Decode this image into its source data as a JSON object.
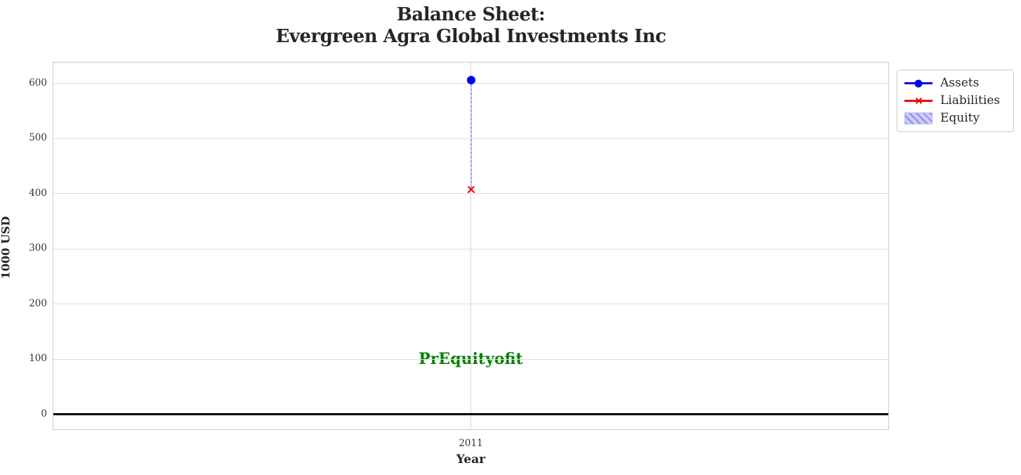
{
  "title_lines": [
    "Balance Sheet:",
    "Evergreen Agra Global Investments Inc"
  ],
  "chart_data": {
    "type": "line",
    "x": [
      2011
    ],
    "xticklabels": [
      "2011"
    ],
    "series": [
      {
        "name": "Assets",
        "plot_type": "line",
        "marker": "circle",
        "color": "#0000ee",
        "values": [
          606
        ]
      },
      {
        "name": "Liabilities",
        "plot_type": "line",
        "marker": "x",
        "color": "#ee0000",
        "values": [
          408
        ]
      },
      {
        "name": "Equity",
        "plot_type": "bar",
        "hatch": "//",
        "face_color": "#ccccff",
        "hatch_color": "#8c8cdb",
        "bottom": "Liabilities",
        "values": [
          198
        ]
      }
    ],
    "title": "Balance Sheet:\nEvergreen Agra Global Investments Inc",
    "xlabel": "Year",
    "ylabel": "1000 USD",
    "yticks": [
      0,
      100,
      200,
      300,
      400,
      500,
      600
    ],
    "ylim": [
      -27,
      638
    ],
    "grid": true,
    "zero_line_value": 0,
    "zero_line_color": "#000000",
    "grid_color": "#dcdcdc",
    "legend_position": "outside-upper-right",
    "legend": [
      "Assets",
      "Liabilities",
      "Equity"
    ],
    "annotation": {
      "text": "PrEquityofit",
      "color": "#008000",
      "x": 2011,
      "y": 100
    }
  }
}
